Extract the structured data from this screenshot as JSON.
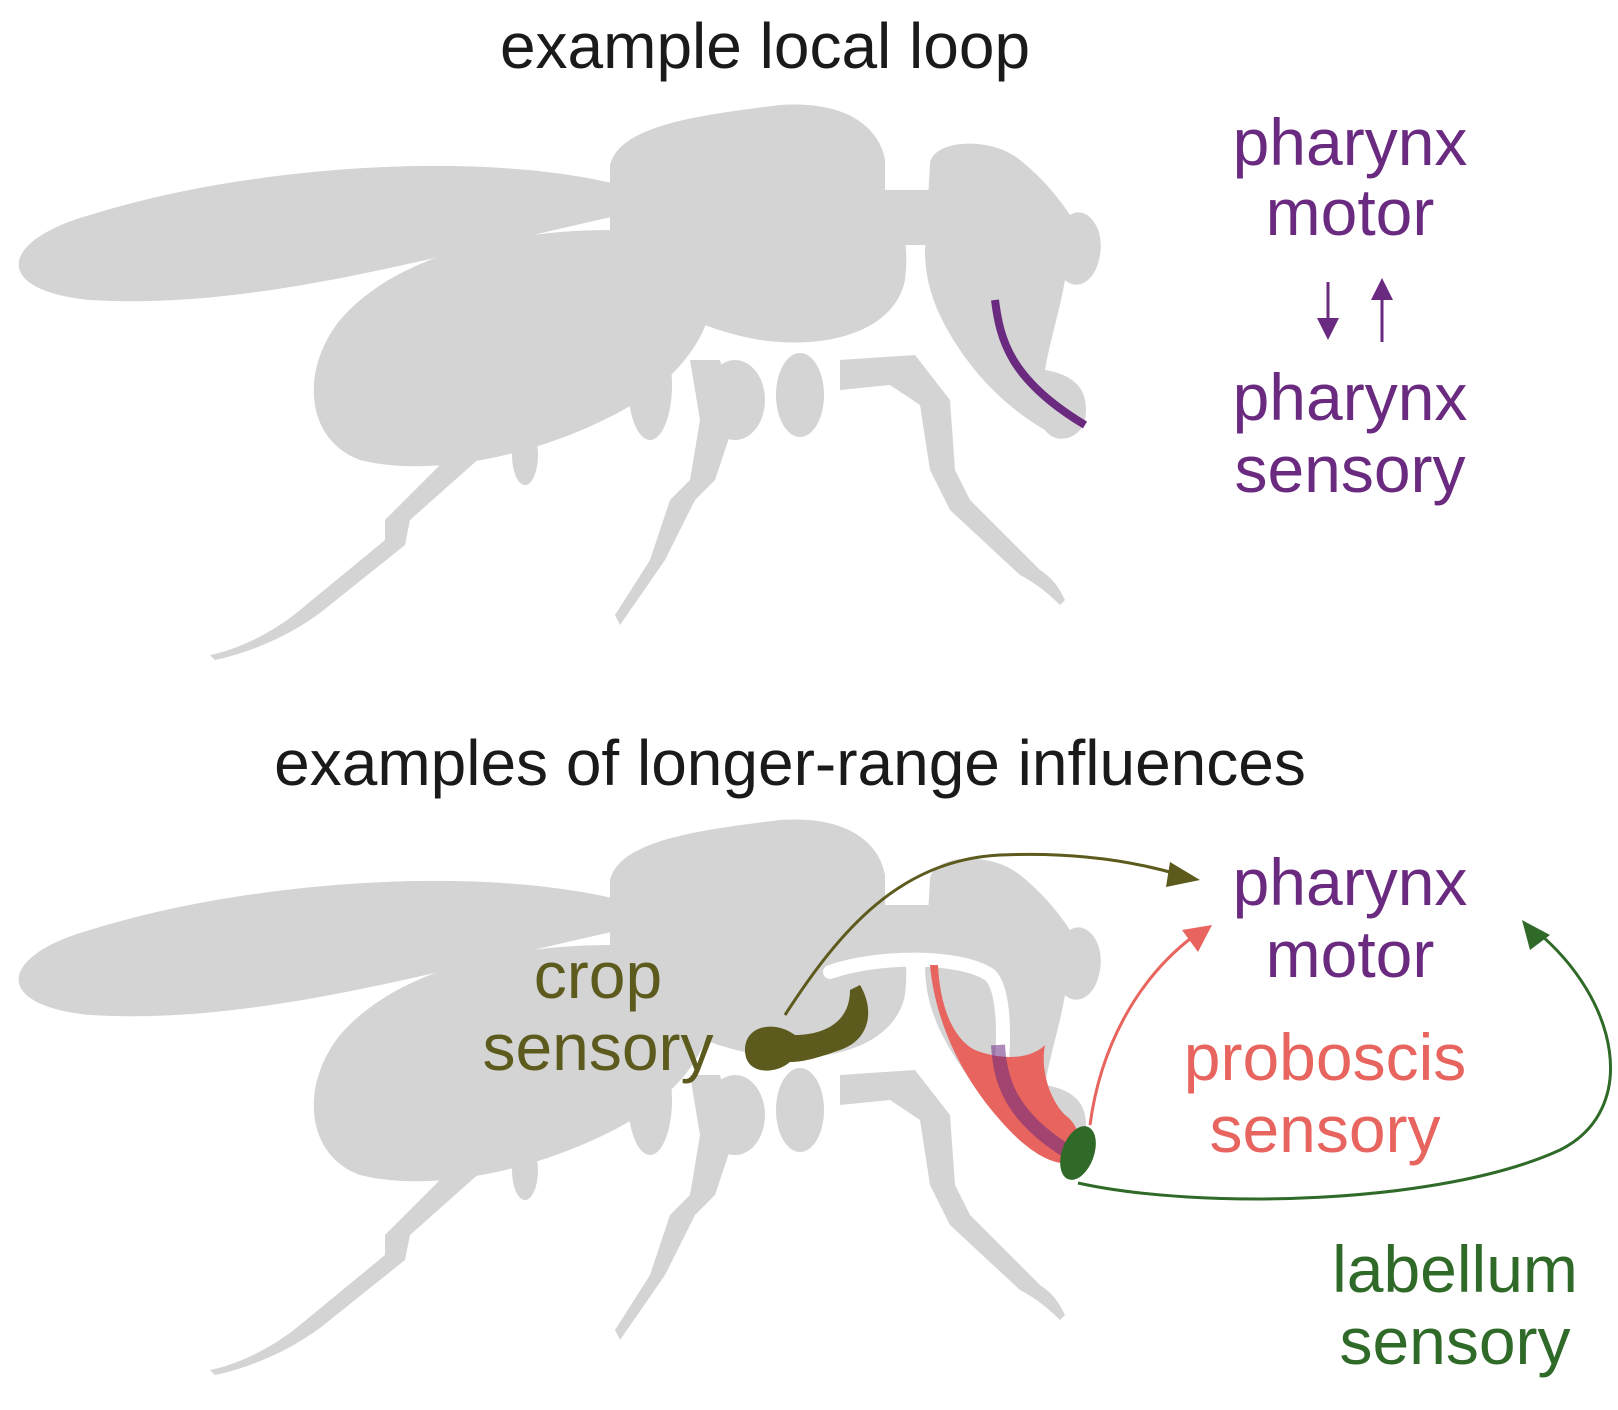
{
  "panels": [
    {
      "title": "example local loop",
      "labels": [
        {
          "line1": "pharynx",
          "line2": "motor",
          "color": "#6a2a80"
        },
        {
          "line1": "pharynx",
          "line2": "sensory",
          "color": "#6a2a80"
        }
      ],
      "arrows": {
        "down": "↓",
        "up": "↑",
        "color": "#6a2a80"
      }
    },
    {
      "title": "examples of longer-range influences",
      "labels": [
        {
          "line1": "pharynx",
          "line2": "motor",
          "color": "#6a2a80"
        },
        {
          "line1": "crop",
          "line2": "sensory",
          "color": "#5c5a1c"
        },
        {
          "line1": "proboscis",
          "line2": "sensory",
          "color": "#e8645e"
        },
        {
          "line1": "labellum",
          "line2": "sensory",
          "color": "#2f6a28"
        }
      ]
    }
  ],
  "colors": {
    "fly": "#d4d4d4",
    "pharynx": "#6a2a80",
    "crop": "#5c5a1c",
    "proboscis": "#e8645e",
    "labellum": "#2f6a28"
  }
}
